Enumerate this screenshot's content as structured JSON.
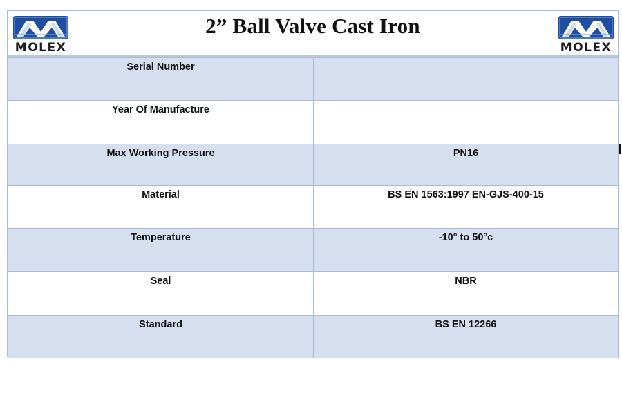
{
  "document": {
    "title": "2” Ball Valve Cast Iron",
    "logo_left": {
      "text": "MOLEX",
      "icon": "molex-logo"
    },
    "logo_right": {
      "text": "MOLEX",
      "icon": "molex-logo"
    },
    "colors": {
      "row_shade": "#d5dff0",
      "row_plain": "#ffffff",
      "border": "#a9bcd4",
      "logo_blue": "#1f4ea1"
    }
  },
  "spec_rows": [
    {
      "label": "Serial Number",
      "value": ""
    },
    {
      "label": "Year Of Manufacture",
      "value": ""
    },
    {
      "label": "Max Working Pressure",
      "value": "PN16"
    },
    {
      "label": "Material",
      "value": "BS EN 1563:1997 EN-GJS-400-15"
    },
    {
      "label": "Temperature",
      "value": "-10° to 50°c"
    },
    {
      "label": "Seal",
      "value": "NBR"
    },
    {
      "label": "Standard",
      "value": "BS EN 12266"
    }
  ]
}
